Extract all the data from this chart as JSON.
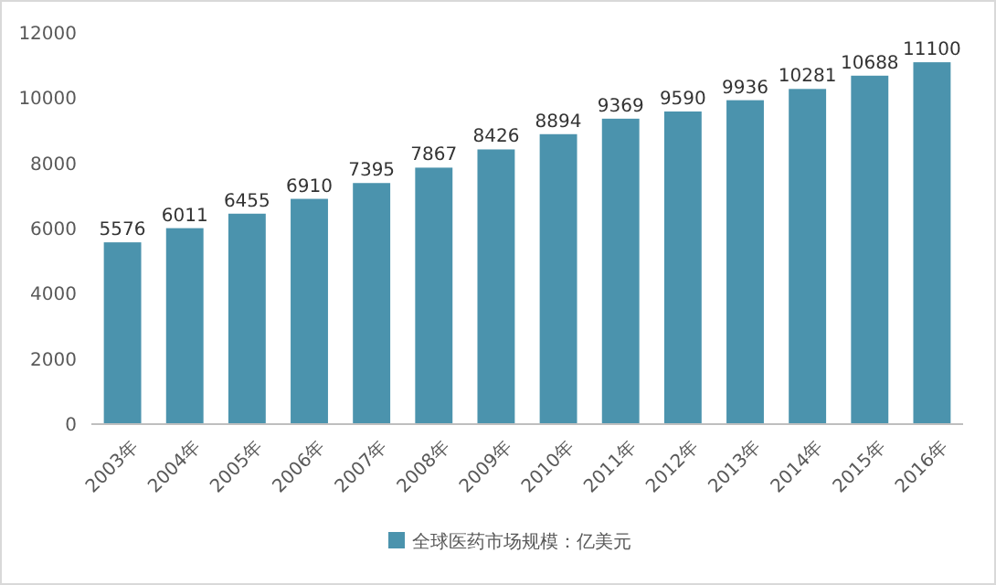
{
  "chart_data": {
    "type": "bar",
    "categories": [
      "2003年",
      "2004年",
      "2005年",
      "2006年",
      "2007年",
      "2008年",
      "2009年",
      "2010年",
      "2011年",
      "2012年",
      "2013年",
      "2014年",
      "2015年",
      "2016年"
    ],
    "series": [
      {
        "name": "全球医药市场规模：亿美元",
        "color": "#4b93ad",
        "values": [
          5576,
          6011,
          6455,
          6910,
          7395,
          7867,
          8426,
          8894,
          9369,
          9590,
          9936,
          10281,
          10688,
          11100
        ]
      }
    ],
    "ylim": [
      0,
      12000
    ],
    "yticks": [
      0,
      2000,
      4000,
      6000,
      8000,
      10000,
      12000
    ],
    "grid": false,
    "legend": "bottom",
    "data_labels": true
  }
}
